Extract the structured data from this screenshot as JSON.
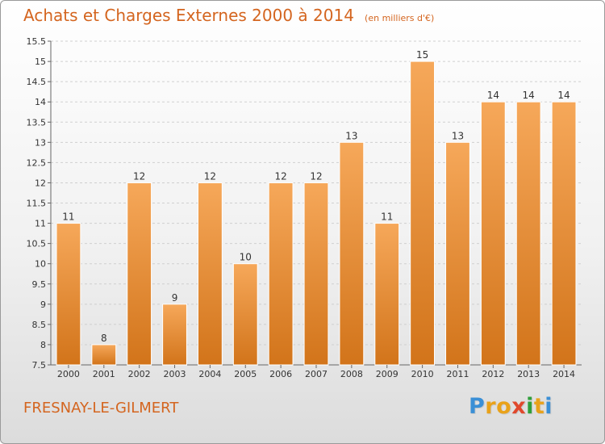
{
  "title": "Achats et Charges Externes 2000 à 2014",
  "unit": "(en milliers d'€)",
  "commune": "FRESNAY-LE-GILMERT",
  "logo": {
    "letters": [
      "P",
      "r",
      "o",
      "x",
      "i",
      "t",
      "i"
    ],
    "colors": [
      "#3a8fd6",
      "#e9a21a",
      "#e9a21a",
      "#e0482c",
      "#2f9f3a",
      "#e9a21a",
      "#3a8fd6"
    ]
  },
  "colors": {
    "bar_top": "#f6a85a",
    "bar_bottom": "#d2741a",
    "bar_stroke": "#ffffff",
    "grid": "#cfcfcf",
    "axis": "#666666",
    "text": "#333333",
    "accent": "#d4651f"
  },
  "chart_data": {
    "type": "bar",
    "categories": [
      "2000",
      "2001",
      "2002",
      "2003",
      "2004",
      "2005",
      "2006",
      "2007",
      "2008",
      "2009",
      "2010",
      "2011",
      "2012",
      "2013",
      "2014"
    ],
    "values": [
      11,
      8,
      12,
      9,
      12,
      10,
      12,
      12,
      13,
      11,
      15,
      13,
      14,
      14,
      14
    ],
    "data_labels": [
      "11",
      "8",
      "12",
      "9",
      "12",
      "10",
      "12",
      "12",
      "13",
      "11",
      "15",
      "13",
      "14",
      "14",
      "14"
    ],
    "ylim": [
      7.5,
      15.5
    ],
    "yticks": [
      7.5,
      8,
      8.5,
      9,
      9.5,
      10,
      10.5,
      11,
      11.5,
      12,
      12.5,
      13,
      13.5,
      14,
      14.5,
      15,
      15.5
    ],
    "ytick_labels": [
      "7.5",
      "8",
      "8.5",
      "9",
      "9.5",
      "10",
      "10.5",
      "11",
      "11.5",
      "12",
      "12.5",
      "13",
      "13.5",
      "14",
      "14.5",
      "15",
      "15.5"
    ],
    "grid": true,
    "grid_style": "dashed",
    "title": "Achats et Charges Externes 2000 à 2014",
    "xlabel": "",
    "ylabel": ""
  }
}
